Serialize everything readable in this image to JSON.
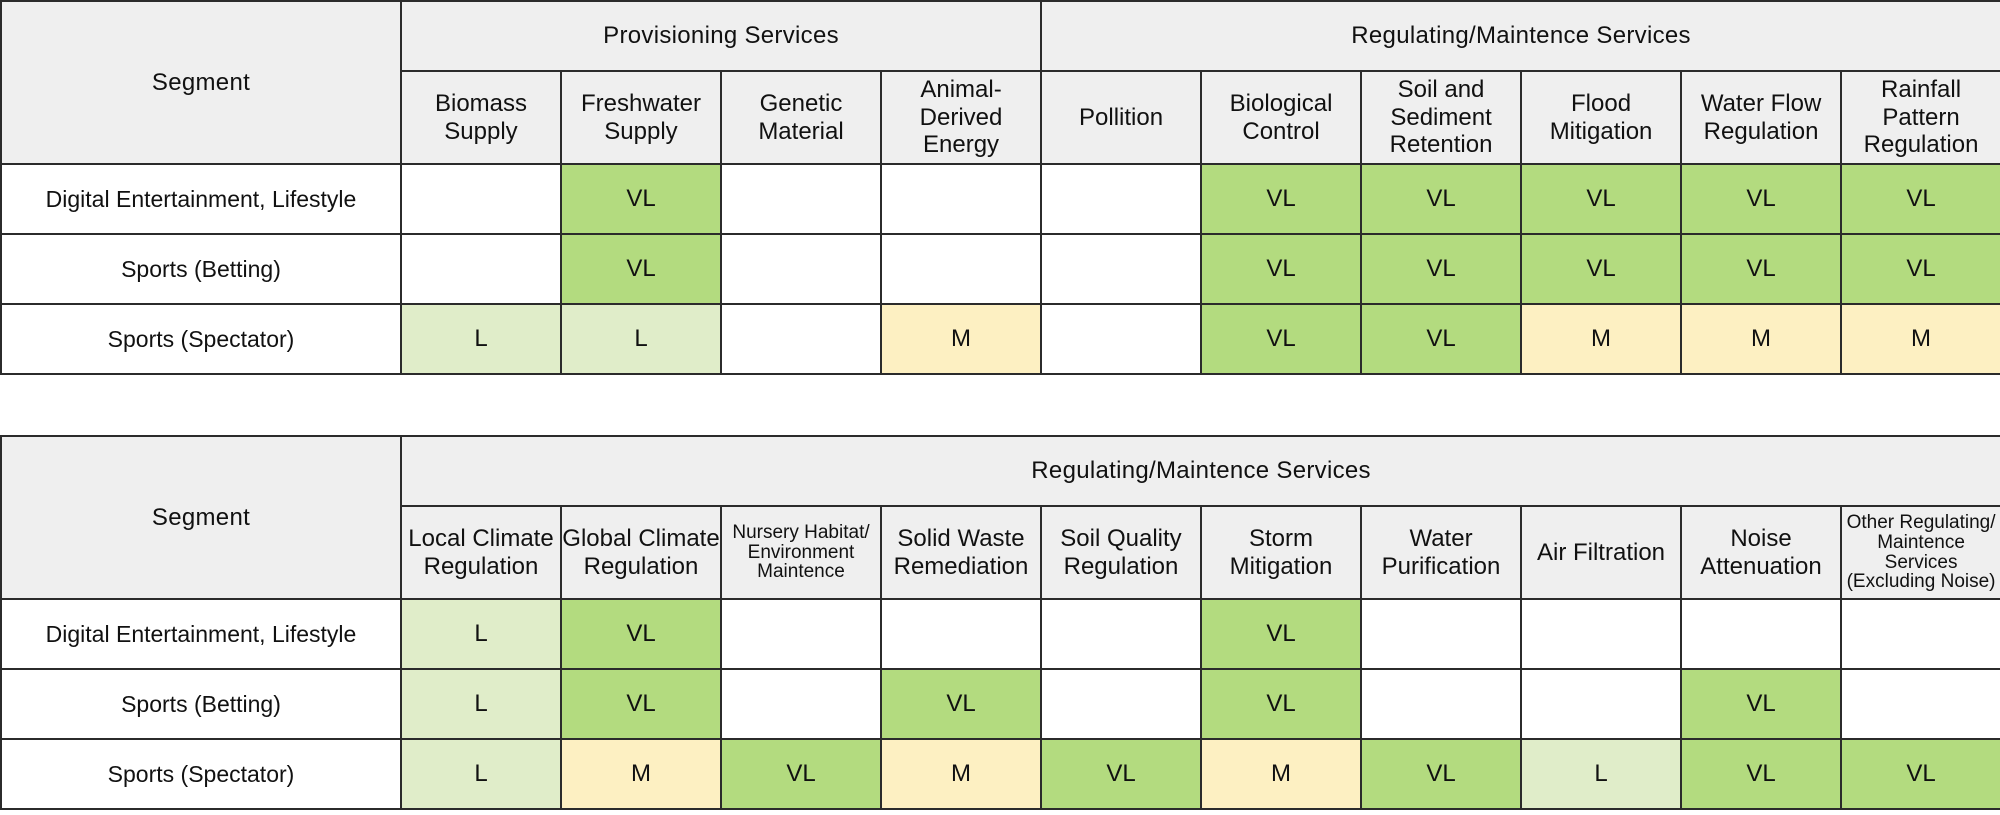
{
  "table1": {
    "segment_header": "Segment",
    "groups": [
      {
        "label": "Provisioning Services",
        "span": 4
      },
      {
        "label": "Regulating/Maintence Services",
        "span": 6
      }
    ],
    "columns": [
      "Biomass Supply",
      "Freshwater Supply",
      "Genetic Material",
      "Animal-Derived Energy",
      "Pollition",
      "Biological Control",
      "Soil and Sediment Retention",
      "Flood Mitigation",
      "Water Flow Regulation",
      "Rainfall Pattern Regulation"
    ],
    "rows": [
      {
        "segment": "Digital Entertainment, Lifestyle",
        "cells": [
          "",
          "VL",
          "",
          "",
          "",
          "VL",
          "VL",
          "VL",
          "VL",
          "VL"
        ]
      },
      {
        "segment": "Sports (Betting)",
        "cells": [
          "",
          "VL",
          "",
          "",
          "",
          "VL",
          "VL",
          "VL",
          "VL",
          "VL"
        ]
      },
      {
        "segment": "Sports (Spectator)",
        "cells": [
          "L",
          "L",
          "",
          "M",
          "",
          "VL",
          "VL",
          "M",
          "M",
          "M"
        ]
      }
    ]
  },
  "table2": {
    "segment_header": "Segment",
    "groups": [
      {
        "label": "Regulating/Maintence Services",
        "span": 10
      }
    ],
    "columns": [
      "Local Climate Regulation",
      "Global Climate Regulation",
      "Nursery Habitat/ Environment Maintence",
      "Solid Waste Remediation",
      "Soil Quality Regulation",
      "Storm Mitigation",
      "Water Purification",
      "Air Filtration",
      "Noise Attenuation",
      "Other Regulating/ Maintence Services (Excluding Noise)"
    ],
    "rows": [
      {
        "segment": "Digital Entertainment, Lifestyle",
        "cells": [
          "L",
          "VL",
          "",
          "",
          "",
          "VL",
          "",
          "",
          "",
          ""
        ]
      },
      {
        "segment": "Sports (Betting)",
        "cells": [
          "L",
          "VL",
          "",
          "VL",
          "",
          "VL",
          "",
          "",
          "VL",
          ""
        ]
      },
      {
        "segment": "Sports (Spectator)",
        "cells": [
          "L",
          "M",
          "VL",
          "M",
          "VL",
          "M",
          "VL",
          "L",
          "VL",
          "VL"
        ]
      }
    ]
  },
  "rating_colors": {
    "VL": "#b3db7f",
    "L": "#e0edc9",
    "M": "#fdf0c2",
    "none": "#ffffff"
  },
  "header_background": "#efefef"
}
